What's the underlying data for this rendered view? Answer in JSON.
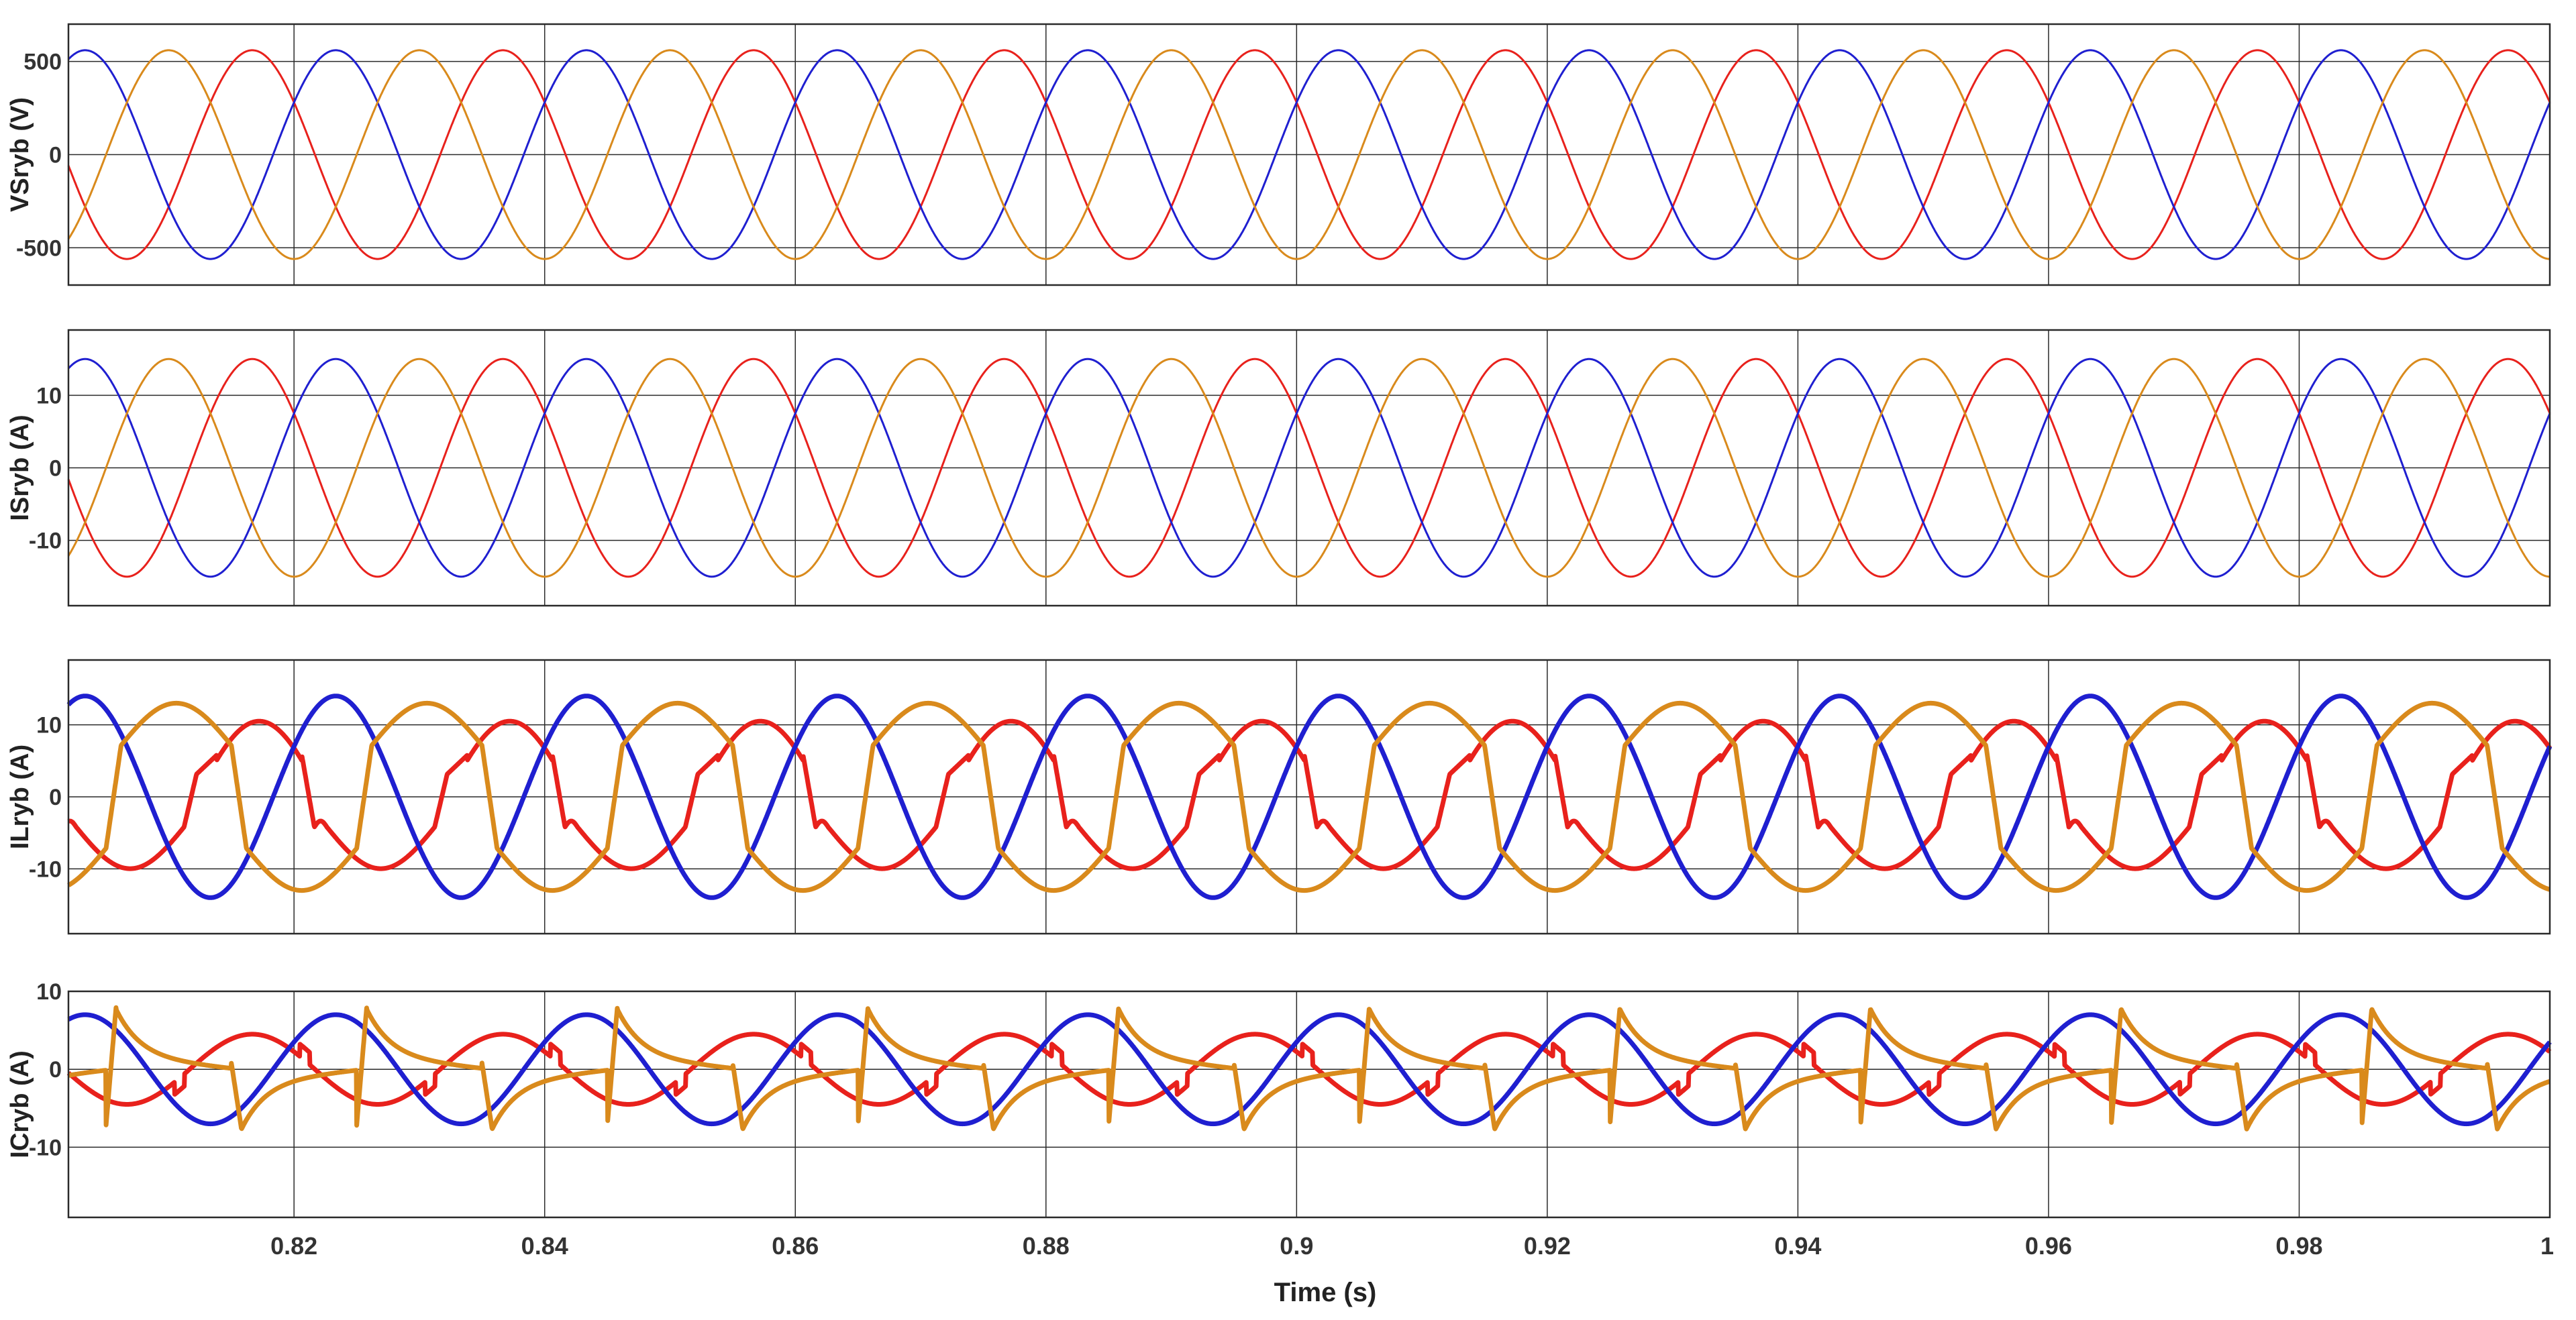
{
  "figure": {
    "xlabel": "Time (s)"
  },
  "chart_data": [
    {
      "type": "line",
      "ylabel": "VSryb (V)",
      "xlim": [
        0.802,
        1.0
      ],
      "ylim": [
        -700,
        700
      ],
      "yticks": [
        -500,
        0,
        500
      ],
      "ytick_labels": [
        "-500",
        "0",
        "500"
      ],
      "xticks": [
        0.82,
        0.84,
        0.86,
        0.88,
        0.9,
        0.92,
        0.94,
        0.96,
        0.98,
        1.0
      ],
      "grid": true,
      "frequency_hz": 50,
      "series": [
        {
          "phase_deg": 150,
          "color": "#e8211c",
          "waveform": "sine",
          "amplitude": 560
        },
        {
          "phase_deg": 30,
          "color": "#1f1fd0",
          "waveform": "sine",
          "amplitude": 560
        },
        {
          "phase_deg": -90,
          "color": "#d98a1c",
          "waveform": "sine",
          "amplitude": 560
        }
      ]
    },
    {
      "type": "line",
      "ylabel": "ISryb (A)",
      "xlim": [
        0.802,
        1.0
      ],
      "ylim": [
        -19,
        19
      ],
      "yticks": [
        -10,
        0,
        10
      ],
      "ytick_labels": [
        "-10",
        "0",
        "10"
      ],
      "xticks": [
        0.82,
        0.84,
        0.86,
        0.88,
        0.9,
        0.92,
        0.94,
        0.96,
        0.98,
        1.0
      ],
      "grid": true,
      "frequency_hz": 50,
      "series": [
        {
          "phase_deg": 150,
          "color": "#e8211c",
          "waveform": "sine",
          "amplitude": 15
        },
        {
          "phase_deg": 30,
          "color": "#1f1fd0",
          "waveform": "sine",
          "amplitude": 15
        },
        {
          "phase_deg": -90,
          "color": "#d98a1c",
          "waveform": "sine",
          "amplitude": 15
        }
      ]
    },
    {
      "type": "line",
      "ylabel": "ILryb (A)",
      "xlim": [
        0.802,
        1.0
      ],
      "ylim": [
        -19,
        19
      ],
      "yticks": [
        -10,
        0,
        10
      ],
      "ytick_labels": [
        "-10",
        "0",
        "10"
      ],
      "xticks": [
        0.82,
        0.84,
        0.86,
        0.88,
        0.9,
        0.92,
        0.94,
        0.96,
        0.98,
        1.0
      ],
      "grid": true,
      "frequency_hz": 50,
      "series": [
        {
          "phase_deg": 140,
          "color": "#e8211c",
          "waveform": "load-r",
          "amplitude": 10.5
        },
        {
          "phase_deg": 30,
          "color": "#1f1fd0",
          "waveform": "load-b",
          "amplitude": 14
        },
        {
          "phase_deg": -90,
          "color": "#d98a1c",
          "waveform": "load-y",
          "amplitude": 13
        }
      ]
    },
    {
      "type": "line",
      "ylabel": "ICryb (A)",
      "xlim": [
        0.802,
        1.0
      ],
      "ylim": [
        -19,
        10
      ],
      "yticks": [
        -10,
        0,
        10
      ],
      "ytick_labels": [
        "-10",
        "0",
        "10"
      ],
      "xticks": [
        0.82,
        0.84,
        0.86,
        0.88,
        0.9,
        0.92,
        0.94,
        0.96,
        0.98,
        1.0
      ],
      "grid": true,
      "frequency_hz": 50,
      "series": [
        {
          "phase_deg": 150,
          "color": "#e8211c",
          "waveform": "comp-r",
          "amplitude": 4.5
        },
        {
          "phase_deg": 30,
          "color": "#1f1fd0",
          "waveform": "sine",
          "amplitude": 7
        },
        {
          "phase_deg": -90,
          "color": "#d98a1c",
          "waveform": "comp-y",
          "amplitude": 8
        }
      ]
    }
  ]
}
